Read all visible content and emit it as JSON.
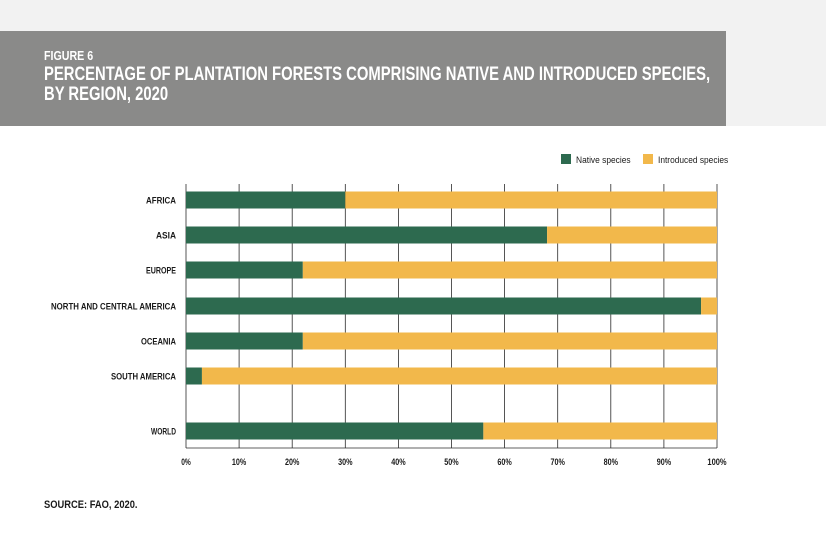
{
  "figure": {
    "label": "FIGURE 6",
    "title_line1": "PERCENTAGE OF PLANTATION FORESTS COMPRISING NATIVE AND INTRODUCED SPECIES,",
    "title_line2": "BY REGION, 2020"
  },
  "source": "SOURCE: FAO, 2020.",
  "colors": {
    "header_bg": "#8a8a89",
    "native": "#2d6a4f",
    "introduced": "#f2b84b",
    "grid": "#2b2b2b"
  },
  "chart_data": {
    "type": "bar",
    "orientation": "horizontal",
    "stacked": true,
    "categories": [
      "AFRICA",
      "ASIA",
      "EUROPE",
      "NORTH AND CENTRAL AMERICA",
      "OCEANIA",
      "SOUTH AMERICA",
      "WORLD"
    ],
    "series": [
      {
        "name": "Native species",
        "values": [
          30,
          68,
          22,
          97,
          22,
          3,
          56
        ]
      },
      {
        "name": "Introduced species",
        "values": [
          70,
          32,
          78,
          3,
          78,
          97,
          44
        ]
      }
    ],
    "xlim": [
      0,
      100
    ],
    "xticks": [
      "0%",
      "10%",
      "20%",
      "30%",
      "40%",
      "50%",
      "60%",
      "70%",
      "80%",
      "90%",
      "100%"
    ],
    "grid": true,
    "legend_position": "top-right"
  }
}
